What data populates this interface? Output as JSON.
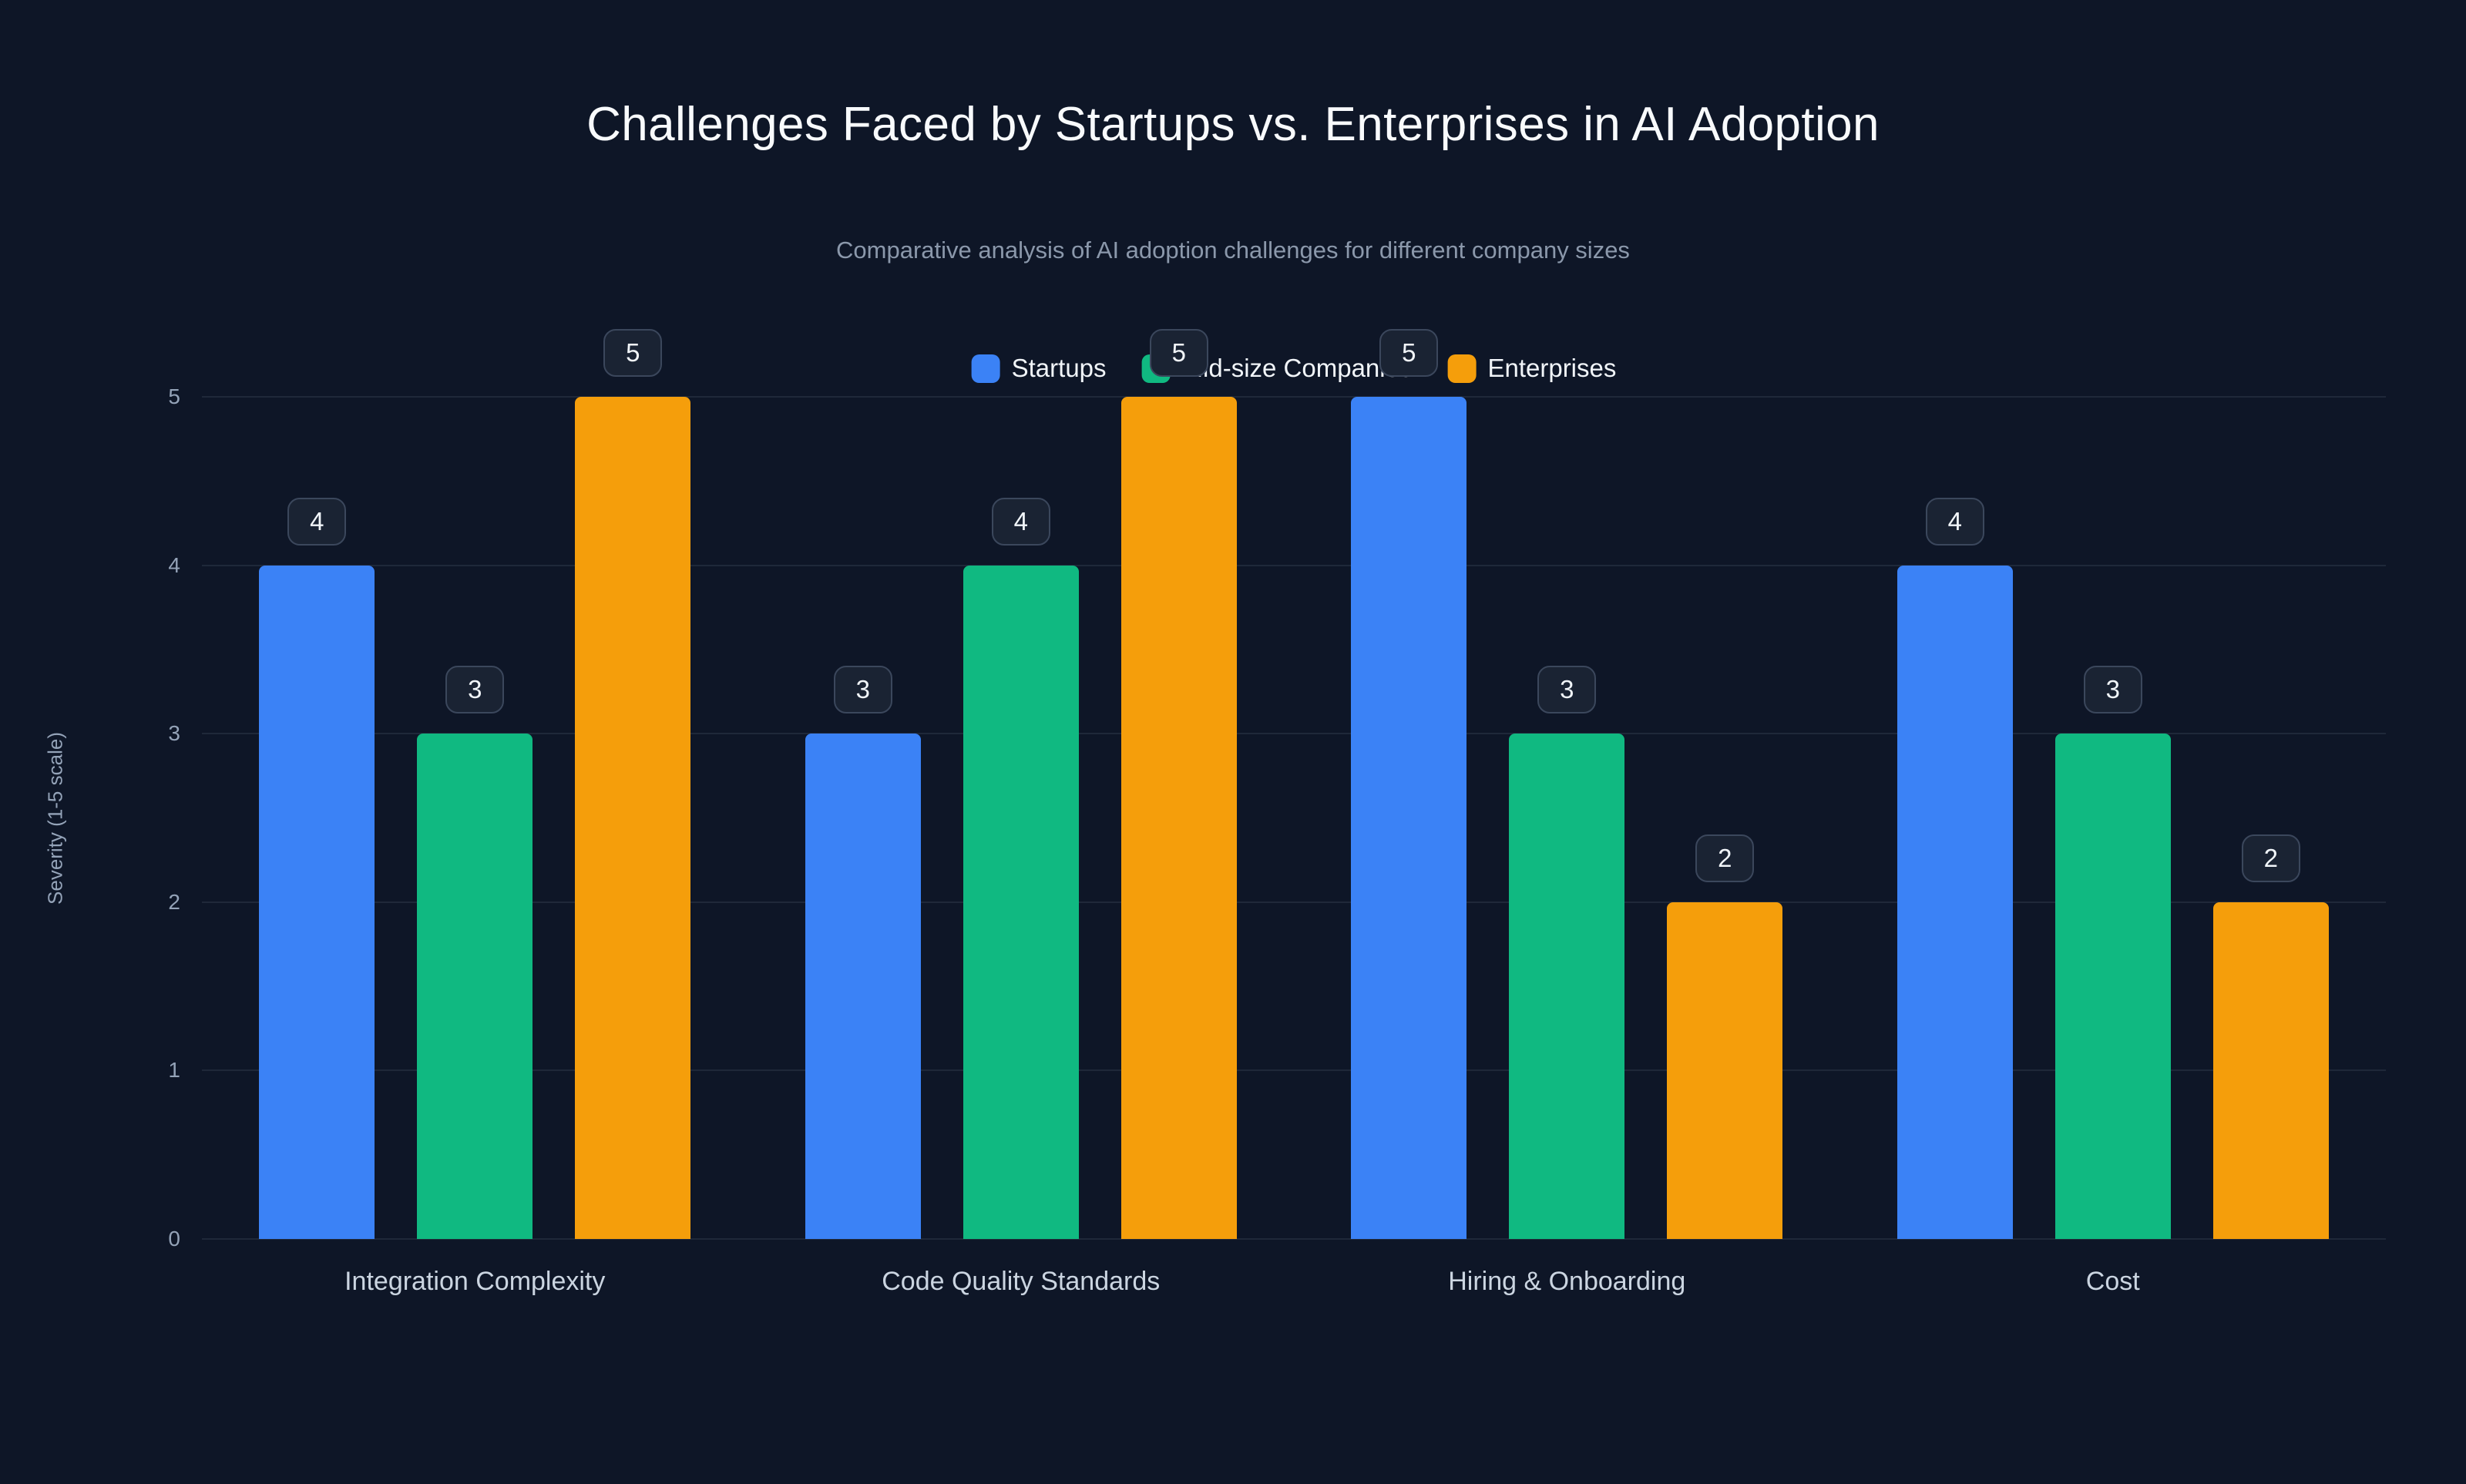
{
  "colors": {
    "background": "#0e1627",
    "startups": "#3b82f6",
    "midsize": "#10b981",
    "enterprises": "#f59e0b"
  },
  "chart_data": {
    "type": "bar",
    "title": "Challenges Faced by Startups vs. Enterprises in AI Adoption",
    "subtitle": "Comparative analysis of AI adoption challenges for different company sizes",
    "categories": [
      "Integration Complexity",
      "Code Quality Standards",
      "Hiring & Onboarding",
      "Cost"
    ],
    "series": [
      {
        "name": "Startups",
        "color": "#3b82f6",
        "values": [
          4,
          3,
          5,
          4
        ]
      },
      {
        "name": "Mid-size Companies",
        "color": "#10b981",
        "values": [
          3,
          4,
          3,
          3
        ]
      },
      {
        "name": "Enterprises",
        "color": "#f59e0b",
        "values": [
          5,
          5,
          2,
          2
        ]
      }
    ],
    "xlabel": "",
    "ylabel": "Severity (1-5 scale)",
    "ylim": [
      0,
      5
    ],
    "yticks": [
      0,
      1,
      2,
      3,
      4,
      5
    ],
    "grid": true,
    "legend_position": "top-center",
    "value_labels": "pill above each bar"
  }
}
